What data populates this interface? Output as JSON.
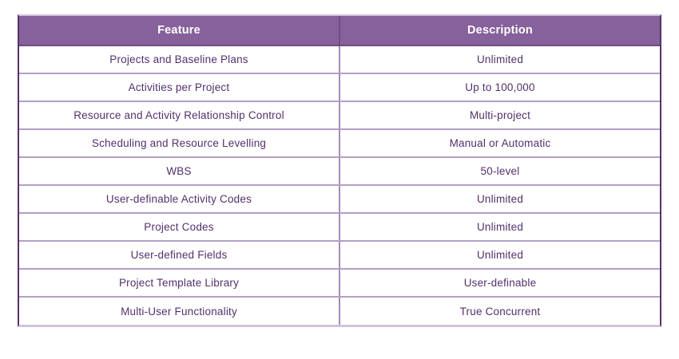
{
  "theme": {
    "header-bg": "#86619b",
    "header-text": "#ffffff",
    "header-divider": "#6f4e82",
    "body-text": "#53306b",
    "row-border": "#b2a0c4",
    "column-divider": "#a58bba",
    "outer-dark": "#553468",
    "outer-light": "#cfc4db"
  },
  "chart_data": {
    "type": "table",
    "title": "",
    "columns": [
      "Feature",
      "Description"
    ],
    "rows": [
      [
        "Projects and Baseline Plans",
        "Unlimited"
      ],
      [
        "Activities per Project",
        "Up to 100,000"
      ],
      [
        "Resource and Activity Relationship Control",
        "Multi-project"
      ],
      [
        "Scheduling and Resource Levelling",
        "Manual or Automatic"
      ],
      [
        "WBS",
        "50-level"
      ],
      [
        "User-definable Activity Codes",
        "Unlimited"
      ],
      [
        "Project Codes",
        "Unlimited"
      ],
      [
        "User-defined Fields",
        "Unlimited"
      ],
      [
        "Project Template Library",
        "User-definable"
      ],
      [
        "Multi-User Functionality",
        "True Concurrent"
      ]
    ]
  }
}
